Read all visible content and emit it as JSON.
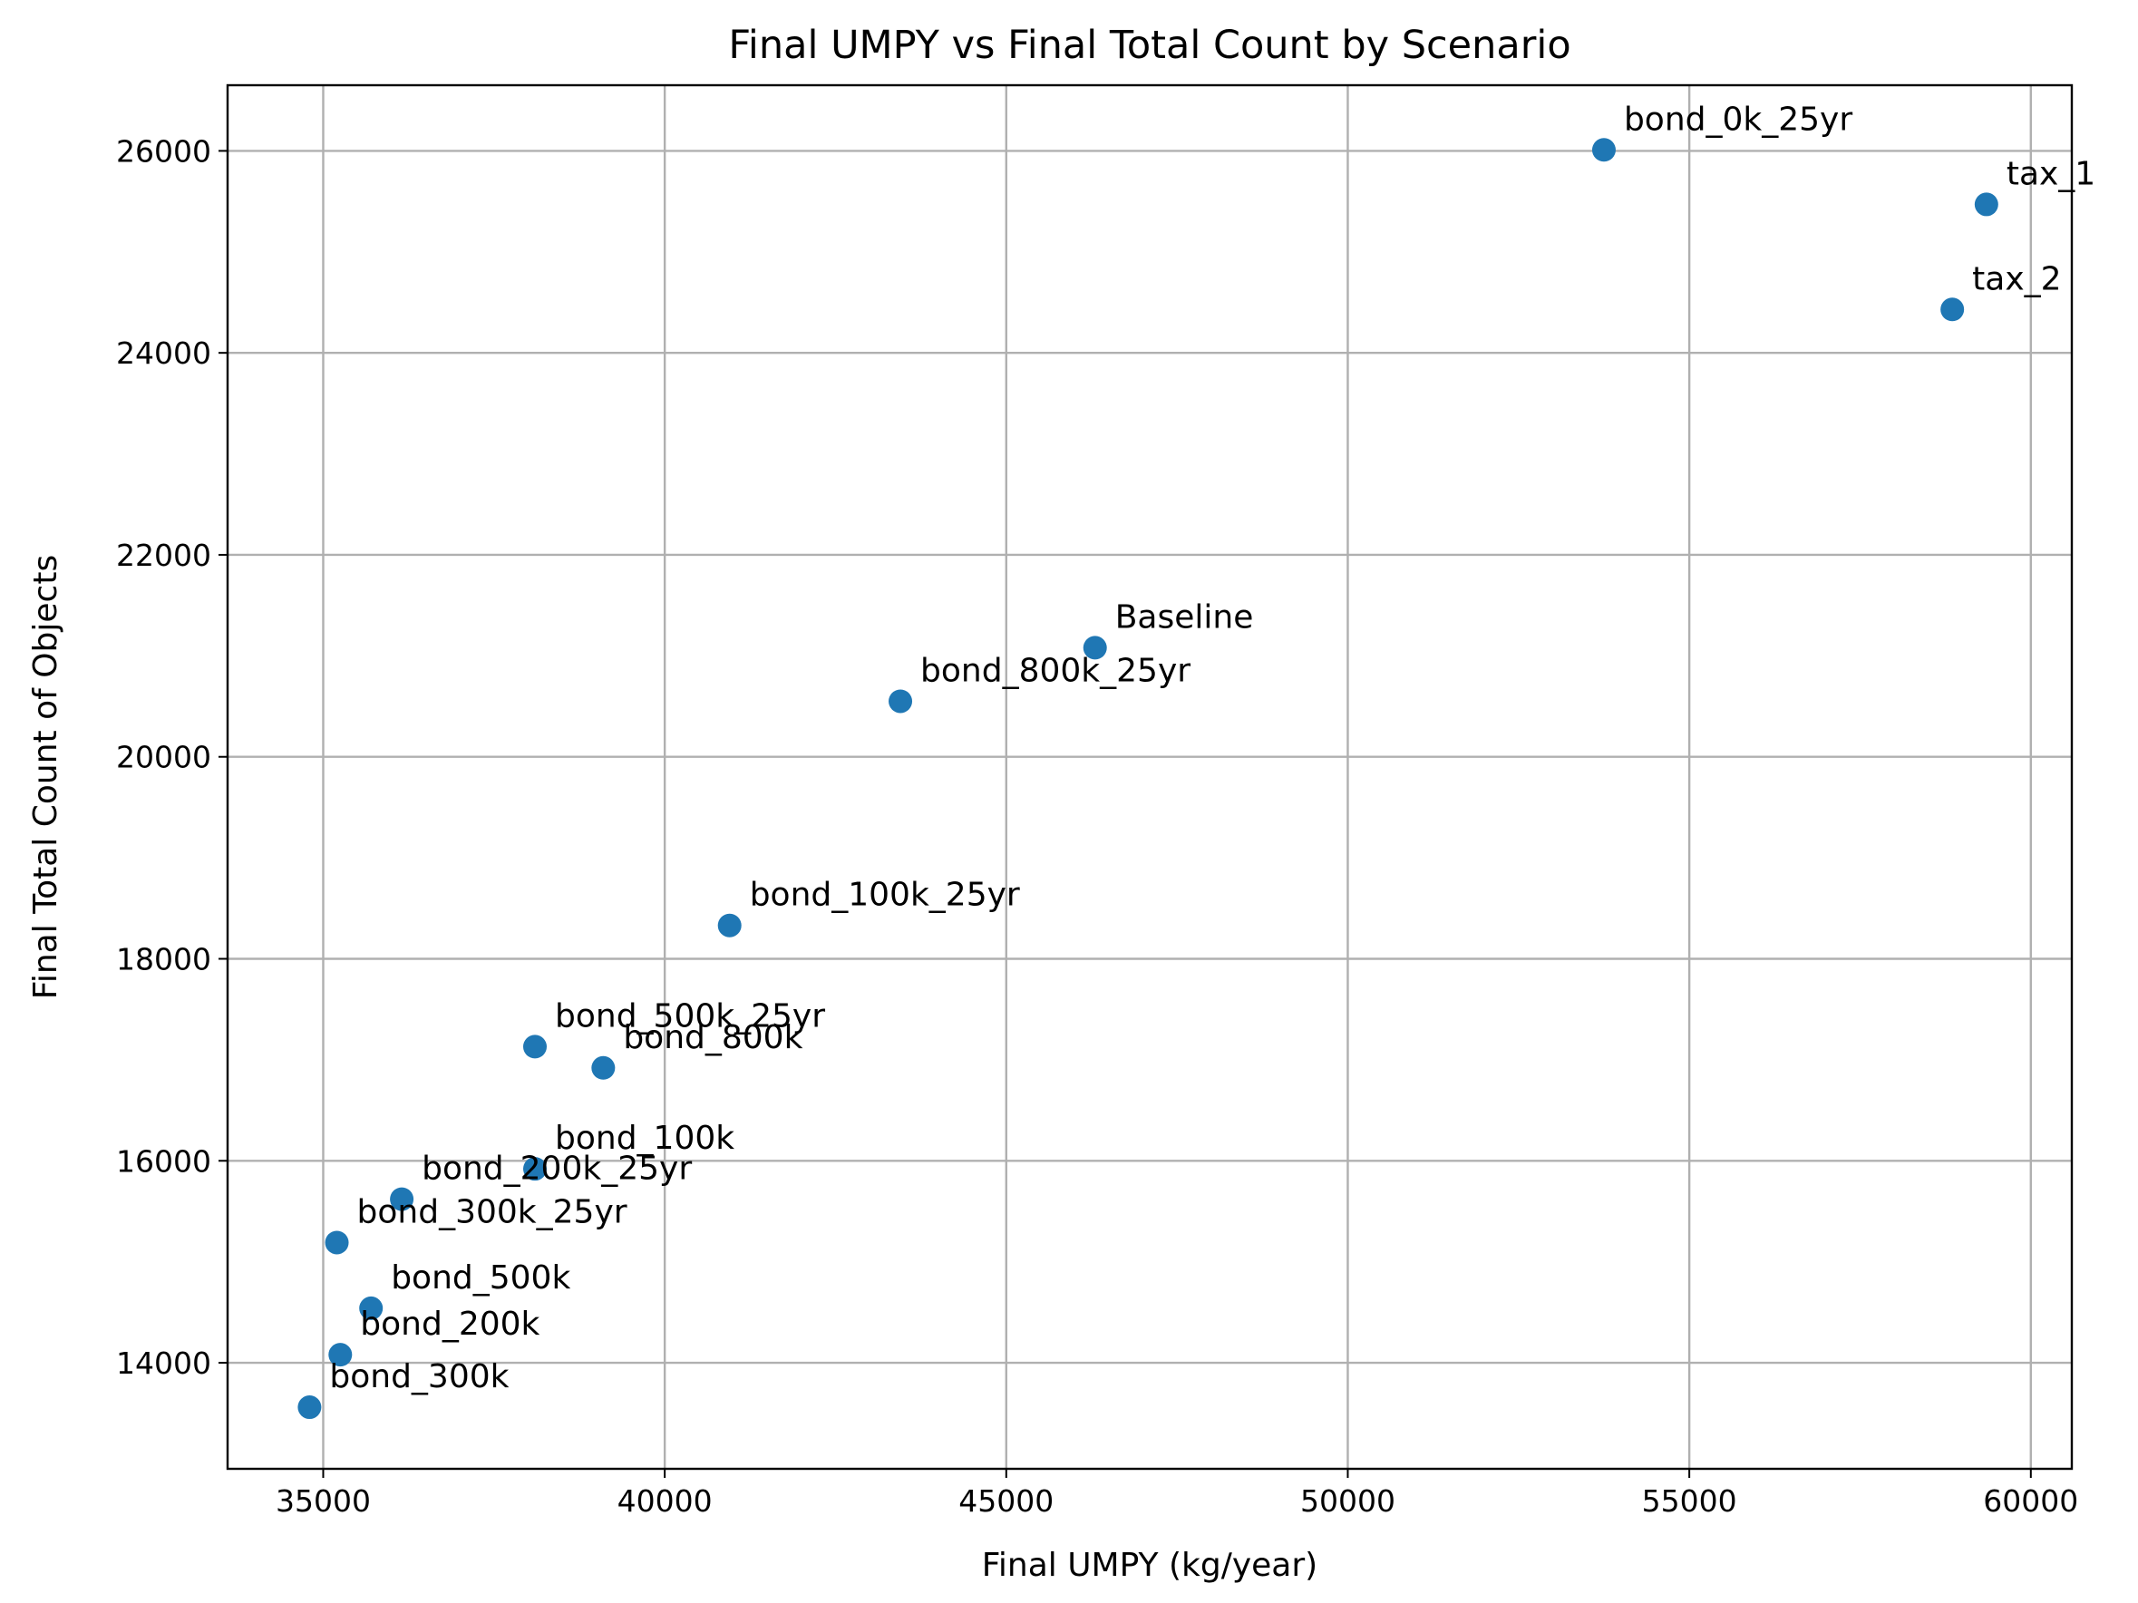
{
  "chart_data": {
    "type": "scatter",
    "title": "Final UMPY vs Final Total Count by Scenario",
    "xlabel": "Final UMPY (kg/year)",
    "ylabel": "Final Total Count of Objects",
    "xlim": [
      33600,
      60600
    ],
    "ylim": [
      12950,
      26650
    ],
    "xticks": [
      35000,
      40000,
      45000,
      50000,
      55000,
      60000
    ],
    "yticks": [
      14000,
      16000,
      18000,
      20000,
      22000,
      24000,
      26000
    ],
    "grid": true,
    "marker_color": "#1f77b4",
    "points": [
      {
        "label": "bond_0k_25yr",
        "x": 53750,
        "y": 26010
      },
      {
        "label": "tax_1",
        "x": 59350,
        "y": 25470
      },
      {
        "label": "tax_2",
        "x": 58850,
        "y": 24430
      },
      {
        "label": "Baseline",
        "x": 46300,
        "y": 21080
      },
      {
        "label": "bond_800k_25yr",
        "x": 43450,
        "y": 20550
      },
      {
        "label": "bond_100k_25yr",
        "x": 40950,
        "y": 18330
      },
      {
        "label": "bond_500k_25yr",
        "x": 38100,
        "y": 17130
      },
      {
        "label": "bond_800k",
        "x": 39100,
        "y": 16920
      },
      {
        "label": "bond_100k",
        "x": 38100,
        "y": 15920
      },
      {
        "label": "bond_200k_25yr",
        "x": 36150,
        "y": 15620
      },
      {
        "label": "bond_300k_25yr",
        "x": 35200,
        "y": 15190
      },
      {
        "label": "bond_500k",
        "x": 35700,
        "y": 14540
      },
      {
        "label": "bond_200k",
        "x": 35250,
        "y": 14080
      },
      {
        "label": "bond_300k",
        "x": 34800,
        "y": 13560
      }
    ]
  }
}
